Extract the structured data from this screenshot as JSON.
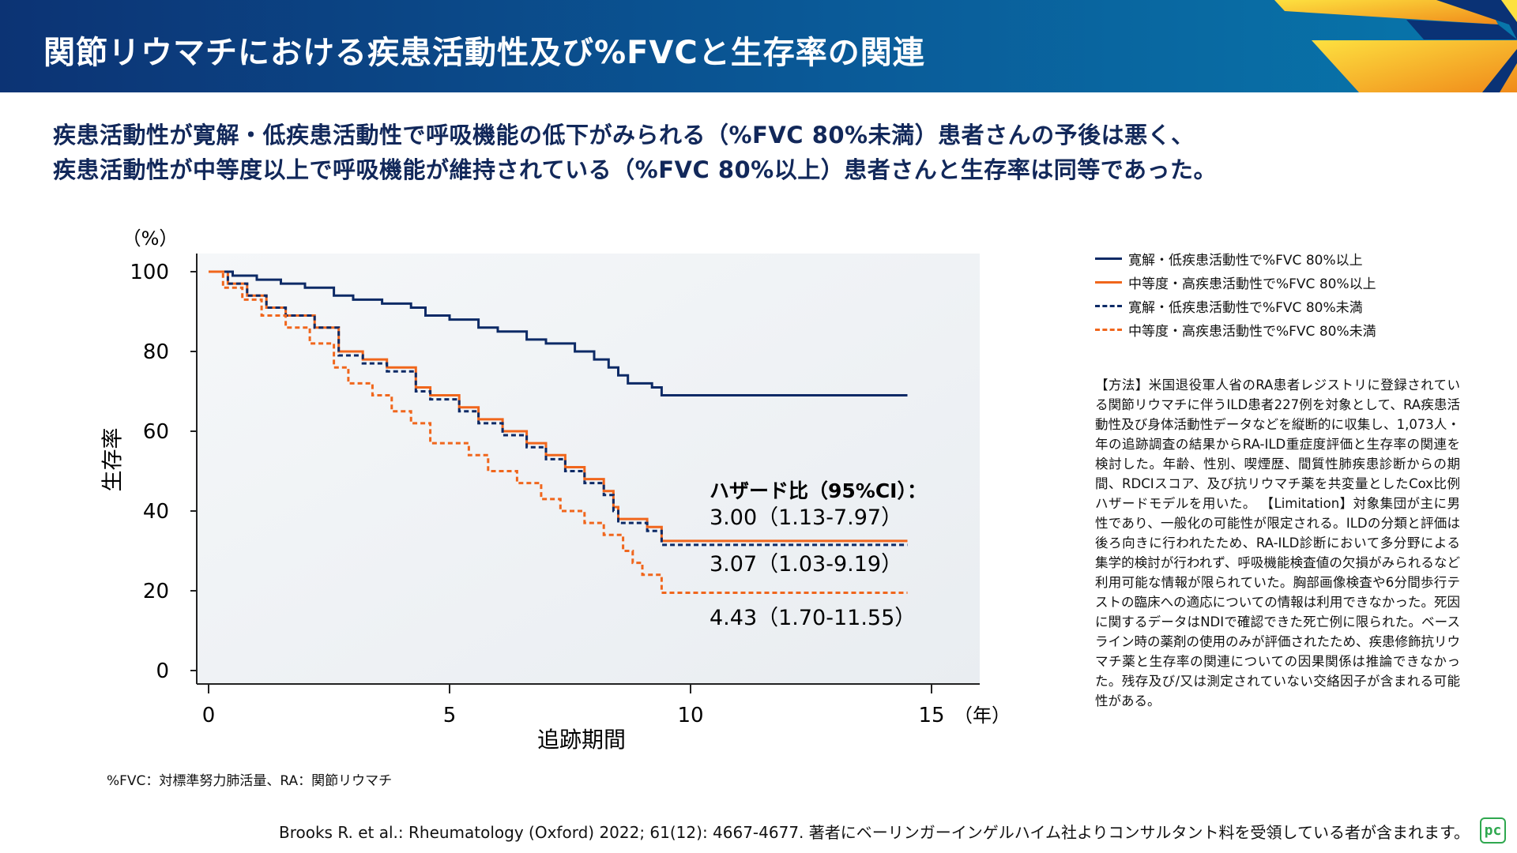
{
  "header": {
    "title": "関節リウマチにおける疾患活動性及び%FVCと生存率の関連"
  },
  "summary": [
    "疾患活動性が寛解・低疾患活動性で呼吸機能の低下がみられる（%FVC 80%未満）患者さんの予後は悪く、",
    "疾患活動性が中等度以上で呼吸機能が維持されている（%FVC 80%以上）患者さんと生存率は同等であった。"
  ],
  "chart_data": {
    "type": "line",
    "subtype": "kaplan-meier step",
    "ylabel": "生存率",
    "yunit": "（%）",
    "xlabel": "追跡期間",
    "xunit": "（年）",
    "xlim": [
      0,
      16
    ],
    "ylim": [
      0,
      100
    ],
    "xticks": [
      "0",
      "5",
      "10",
      "15"
    ],
    "yticks": [
      "0",
      "20",
      "40",
      "60",
      "80",
      "100"
    ],
    "legend_position": "right",
    "series": [
      {
        "name": "寛解・低疾患活動性で%FVC 80%以上",
        "color": "#0d2a66",
        "dash": false,
        "points": [
          [
            0,
            100
          ],
          [
            0.5,
            99
          ],
          [
            1,
            98
          ],
          [
            1.5,
            97
          ],
          [
            2,
            96
          ],
          [
            2.6,
            94
          ],
          [
            3,
            93
          ],
          [
            3.6,
            92
          ],
          [
            4.2,
            91
          ],
          [
            4.5,
            89
          ],
          [
            5,
            88
          ],
          [
            5.6,
            86
          ],
          [
            6,
            85
          ],
          [
            6.6,
            83
          ],
          [
            7,
            82
          ],
          [
            7.6,
            80
          ],
          [
            8,
            78
          ],
          [
            8.3,
            76
          ],
          [
            8.5,
            74
          ],
          [
            8.7,
            72
          ],
          [
            9.2,
            71
          ],
          [
            9.4,
            69
          ],
          [
            14.5,
            69
          ]
        ]
      },
      {
        "name": "中等度・高疾患活動性で%FVC 80%以上",
        "color": "#f0661c",
        "dash": false,
        "points": [
          [
            0,
            100
          ],
          [
            0.4,
            97
          ],
          [
            0.8,
            94
          ],
          [
            1.2,
            91
          ],
          [
            1.6,
            89
          ],
          [
            2.2,
            86
          ],
          [
            2.7,
            80
          ],
          [
            3.2,
            78
          ],
          [
            3.7,
            76
          ],
          [
            4.3,
            71
          ],
          [
            4.6,
            69
          ],
          [
            5.2,
            66
          ],
          [
            5.6,
            63
          ],
          [
            6.1,
            60
          ],
          [
            6.6,
            57
          ],
          [
            7,
            54
          ],
          [
            7.4,
            51
          ],
          [
            7.8,
            48
          ],
          [
            8.2,
            45
          ],
          [
            8.4,
            41
          ],
          [
            8.5,
            38
          ],
          [
            9.1,
            36
          ],
          [
            9.4,
            32.5
          ],
          [
            14.5,
            32.5
          ]
        ]
      },
      {
        "name": "寛解・低疾患活動性で%FVC 80%未満",
        "color": "#0d2a66",
        "dash": true,
        "points": [
          [
            0,
            100
          ],
          [
            0.4,
            97
          ],
          [
            0.8,
            94
          ],
          [
            1.2,
            91
          ],
          [
            1.6,
            89
          ],
          [
            2.2,
            86
          ],
          [
            2.7,
            79
          ],
          [
            3.2,
            77
          ],
          [
            3.7,
            75
          ],
          [
            4.3,
            70
          ],
          [
            4.6,
            68
          ],
          [
            5.2,
            65
          ],
          [
            5.6,
            62
          ],
          [
            6.1,
            59
          ],
          [
            6.6,
            56
          ],
          [
            7,
            53
          ],
          [
            7.4,
            50
          ],
          [
            7.8,
            47
          ],
          [
            8.2,
            44
          ],
          [
            8.4,
            40
          ],
          [
            8.5,
            37
          ],
          [
            9.1,
            35
          ],
          [
            9.4,
            31.5
          ],
          [
            14.5,
            31.5
          ]
        ]
      },
      {
        "name": "中等度・高疾患活動性で%FVC 80%未満",
        "color": "#f0661c",
        "dash": true,
        "points": [
          [
            0,
            100
          ],
          [
            0.3,
            96
          ],
          [
            0.7,
            93
          ],
          [
            1.1,
            89
          ],
          [
            1.6,
            86
          ],
          [
            2.1,
            82
          ],
          [
            2.6,
            76
          ],
          [
            2.9,
            72
          ],
          [
            3.4,
            69
          ],
          [
            3.8,
            65
          ],
          [
            4.2,
            62
          ],
          [
            4.6,
            57
          ],
          [
            5.4,
            54
          ],
          [
            5.8,
            50
          ],
          [
            6.4,
            47
          ],
          [
            6.9,
            43
          ],
          [
            7.3,
            40
          ],
          [
            7.8,
            37
          ],
          [
            8.2,
            34
          ],
          [
            8.6,
            30
          ],
          [
            8.8,
            27
          ],
          [
            9.0,
            24
          ],
          [
            9.4,
            19.5
          ],
          [
            14.5,
            19.5
          ]
        ]
      }
    ],
    "annotations": {
      "hr_title": "ハザード比（95%CI）：",
      "hr_values": [
        "3.00（1.13-7.97）",
        "3.07（1.03-9.19）",
        "4.43（1.70-11.55）"
      ]
    }
  },
  "method_text": "【方法】米国退役軍人省のRA患者レジストリに登録されている関節リウマチに伴うILD患者227例を対象として、RA疾患活動性及び身体活動性データなどを縦断的に収集し、1,073人・年の追跡調査の結果からRA-ILD重症度評価と生存率の関連を検討した。年齢、性別、喫煙歴、間質性肺疾患診断からの期間、RDCIスコア、及び抗リウマチ薬を共変量としたCox比例ハザードモデルを用いた。",
  "limitation_text": "【Limitation】対象集団が主に男性であり、一般化の可能性が限定される。ILDの分類と評価は後ろ向きに行われたため、RA-ILD診断において多分野による集学的検討が行われず、呼吸機能検査値の欠損がみられるなど利用可能な情報が限られていた。胸部画像検査や6分間歩行テストの臨床への適応についての情報は利用できなかった。死因に関するデータはNDIで確認できた死亡例に限られた。ベースライン時の薬剤の使用のみが評価されたため、疾患修飾抗リウマチ薬と生存率の関連についての因果関係は推論できなかった。残存及び/又は測定されていない交絡因子が含まれる可能性がある。",
  "footnote": "%FVC：対標準努力肺活量、RA：関節リウマチ",
  "citation": "Brooks R. et al.: Rheumatology (Oxford) 2022; 61(12): 4667-4677. 著者にベーリンガーインゲルハイム社よりコンサルタント料を受領している者が含まれます。",
  "logo": "pc"
}
